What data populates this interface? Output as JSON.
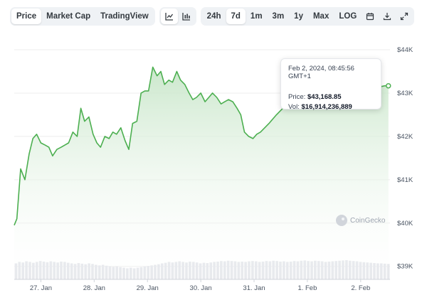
{
  "toolbar": {
    "tabs": [
      "Price",
      "Market Cap",
      "TradingView"
    ],
    "active_tab": "Price",
    "ranges": [
      "24h",
      "7d",
      "1m",
      "3m",
      "1y",
      "Max",
      "LOG"
    ],
    "active_range": "7d",
    "icons": [
      "line-chart-icon",
      "candlestick-chart-icon",
      "calendar-icon",
      "download-icon",
      "fullscreen-icon"
    ]
  },
  "tooltip": {
    "date": "Feb 2, 2024, 08:45:56 GMT+1",
    "price_label": "Price:",
    "price_value": "$43,168.85",
    "vol_label": "Vol:",
    "vol_value": "$16,914,236,889"
  },
  "watermark": "CoinGecko",
  "colors": {
    "line": "#4caf50",
    "fill_top": "#c8e6c9",
    "volume": "#e5e7eb",
    "grid": "#eeeeee"
  },
  "chart_data": {
    "type": "area",
    "title": "",
    "xlabel": "",
    "ylabel": "",
    "x_ticks": [
      "27. Jan",
      "28. Jan",
      "29. Jan",
      "30. Jan",
      "31. Jan",
      "1. Feb",
      "2. Feb"
    ],
    "y_ticks": [
      "$39K",
      "$40K",
      "$41K",
      "$42K",
      "$43K",
      "$44K"
    ],
    "ylim": [
      38700,
      44000
    ],
    "xlim": [
      0,
      7.05
    ],
    "grid": true,
    "series": [
      {
        "x": [
          0,
          0.05,
          0.12,
          0.2,
          0.28,
          0.35,
          0.42,
          0.5,
          0.58,
          0.65,
          0.72,
          0.8,
          0.88,
          0.95,
          1.02,
          1.1,
          1.18,
          1.25,
          1.32,
          1.4,
          1.48,
          1.55,
          1.62,
          1.7,
          1.78,
          1.85,
          1.92,
          2.0,
          2.08,
          2.15,
          2.22,
          2.3,
          2.38,
          2.45,
          2.52,
          2.6,
          2.68,
          2.75,
          2.82,
          2.9,
          2.97,
          3.05,
          3.12,
          3.2,
          3.28,
          3.35,
          3.42,
          3.5,
          3.58,
          3.65,
          3.72,
          3.8,
          3.88,
          3.95,
          4.02,
          4.1,
          4.18,
          4.25,
          4.32,
          4.4,
          4.48,
          4.55,
          4.62,
          4.7,
          4.78,
          4.85,
          4.92,
          5.0,
          5.08,
          5.15,
          5.22,
          5.3,
          5.38,
          5.45,
          5.52,
          5.6,
          5.68,
          5.75,
          5.82,
          5.9,
          5.97,
          6.05,
          6.12,
          6.2,
          6.28,
          6.35,
          6.42,
          6.5,
          6.58,
          6.65,
          6.72,
          6.8,
          6.88,
          6.95,
          7.02
        ],
        "y": [
          39950,
          40100,
          41250,
          41000,
          41600,
          41950,
          42050,
          41850,
          41800,
          41750,
          41550,
          41700,
          41750,
          41800,
          41850,
          42100,
          42000,
          42650,
          42350,
          42450,
          42050,
          41850,
          41750,
          42000,
          41950,
          42100,
          42050,
          42200,
          41900,
          41700,
          42300,
          42350,
          43000,
          43050,
          43050,
          43600,
          43400,
          43500,
          43200,
          43300,
          43250,
          43500,
          43300,
          43200,
          43000,
          42850,
          42900,
          43000,
          42800,
          42900,
          43000,
          42900,
          42750,
          42800,
          42850,
          42800,
          42650,
          42500,
          42100,
          42000,
          41950,
          42050,
          42100,
          42200,
          42300,
          42400,
          42500,
          42600,
          42700,
          42800,
          42900,
          42950,
          43000,
          43050,
          43100,
          43050,
          43000,
          43050,
          43100,
          43050,
          43100,
          43150,
          43100,
          43050,
          43100,
          43150,
          43200,
          43100,
          43050,
          43100,
          43150,
          43100,
          43150,
          43168,
          43168
        ]
      }
    ],
    "volume": [
      0.55,
      0.6,
      0.58,
      0.62,
      0.6,
      0.57,
      0.6,
      0.63,
      0.61,
      0.59,
      0.62,
      0.6,
      0.58,
      0.61,
      0.6,
      0.57,
      0.55,
      0.53,
      0.56,
      0.54,
      0.52,
      0.55,
      0.53,
      0.5,
      0.48,
      0.5,
      0.47,
      0.45,
      0.43,
      0.45,
      0.42,
      0.4,
      0.38,
      0.4,
      0.38,
      0.4,
      0.42,
      0.44,
      0.46,
      0.48,
      0.5,
      0.52,
      0.55,
      0.57,
      0.6,
      0.58,
      0.6,
      0.62,
      0.6,
      0.58,
      0.61,
      0.6,
      0.58,
      0.55,
      0.57,
      0.56,
      0.58,
      0.6,
      0.61,
      0.63,
      0.62,
      0.64,
      0.63,
      0.62,
      0.6,
      0.61,
      0.6,
      0.62,
      0.63,
      0.62,
      0.6,
      0.61,
      0.63,
      0.62,
      0.64,
      0.63,
      0.61,
      0.62,
      0.6,
      0.61,
      0.63,
      0.62,
      0.64,
      0.65,
      0.63,
      0.62,
      0.64,
      0.63,
      0.62,
      0.6,
      0.61,
      0.62,
      0.63,
      0.64,
      0.65,
      0.66,
      0.64,
      0.63,
      0.62,
      0.6,
      0.59,
      0.58,
      0.57,
      0.56,
      0.55,
      0.55,
      0.54,
      0.53
    ]
  }
}
